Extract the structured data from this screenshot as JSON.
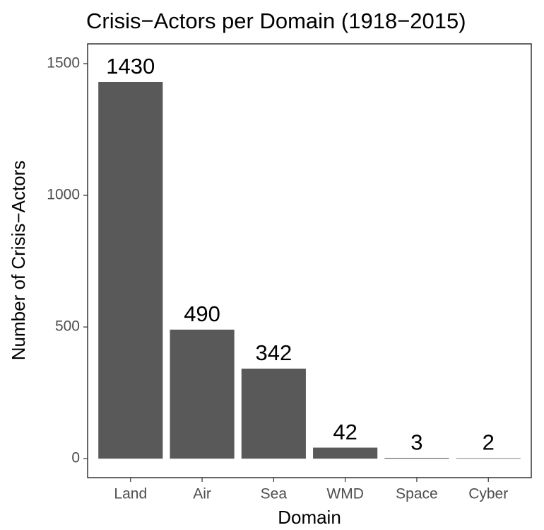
{
  "chart_data": {
    "type": "bar",
    "title": "Crisis−Actors per Domain (1918−2015)",
    "x_label": "Domain",
    "y_label": "Number of Crisis−Actors",
    "categories": [
      "Land",
      "Air",
      "Sea",
      "WMD",
      "Space",
      "Cyber"
    ],
    "values": [
      1430,
      490,
      342,
      42,
      3,
      2
    ],
    "color": "#595959",
    "ylim": [
      -72,
      1575
    ],
    "yticks": [
      0,
      500,
      1000,
      1500
    ],
    "grid": false
  }
}
